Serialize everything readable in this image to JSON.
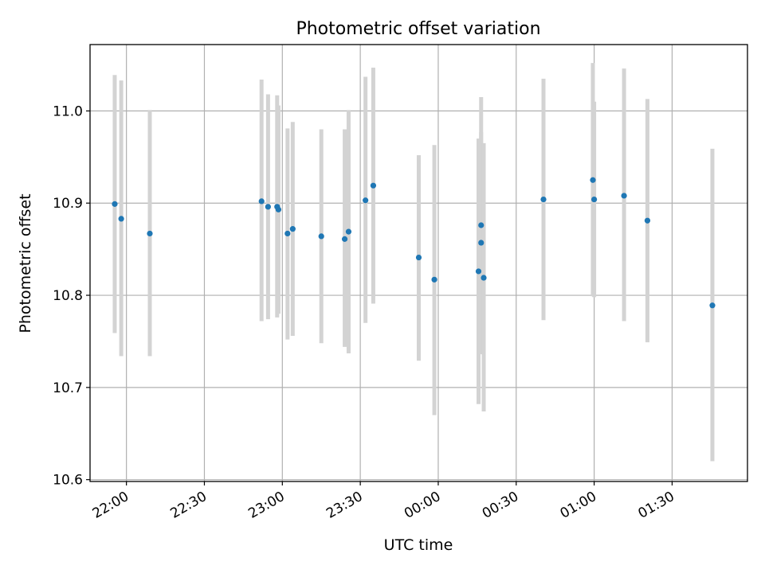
{
  "chart_data": {
    "type": "scatter",
    "title": "Photometric offset variation",
    "xlabel": "UTC time",
    "ylabel": "Photometric offset",
    "xlim": [
      "2023-01-01T21:46:00",
      "2023-01-02T01:59:00"
    ],
    "ylim": [
      10.598,
      11.072
    ],
    "grid": true,
    "x_ticks": [
      {
        "t": "2023-01-01T22:00:00",
        "label": "22:00"
      },
      {
        "t": "2023-01-01T22:30:00",
        "label": "22:30"
      },
      {
        "t": "2023-01-01T23:00:00",
        "label": "23:00"
      },
      {
        "t": "2023-01-01T23:30:00",
        "label": "23:30"
      },
      {
        "t": "2023-01-02T00:00:00",
        "label": "00:00"
      },
      {
        "t": "2023-01-02T00:30:00",
        "label": "00:30"
      },
      {
        "t": "2023-01-02T01:00:00",
        "label": "01:00"
      },
      {
        "t": "2023-01-02T01:30:00",
        "label": "01:30"
      }
    ],
    "y_ticks": [
      10.6,
      10.7,
      10.8,
      10.9,
      11.0
    ],
    "y_tick_labels": [
      "10.6",
      "10.7",
      "10.8",
      "10.9",
      "11.0"
    ],
    "colors": {
      "points": "#1f77b4",
      "errorbars": "#d3d3d3",
      "grid": "#b0b0b0",
      "axes": "#000000"
    },
    "points": [
      {
        "t": "2023-01-01T21:55:30",
        "y": 10.899,
        "lo": 10.759,
        "hi": 11.039
      },
      {
        "t": "2023-01-01T21:58:00",
        "y": 10.883,
        "lo": 10.734,
        "hi": 11.033
      },
      {
        "t": "2023-01-01T22:09:00",
        "y": 10.867,
        "lo": 10.734,
        "hi": 11.001
      },
      {
        "t": "2023-01-01T22:52:00",
        "y": 10.902,
        "lo": 10.772,
        "hi": 11.034
      },
      {
        "t": "2023-01-01T22:54:30",
        "y": 10.896,
        "lo": 10.774,
        "hi": 11.018
      },
      {
        "t": "2023-01-01T22:58:00",
        "y": 10.896,
        "lo": 10.776,
        "hi": 11.017
      },
      {
        "t": "2023-01-01T22:58:30",
        "y": 10.893,
        "lo": 10.78,
        "hi": 11.006
      },
      {
        "t": "2023-01-01T23:02:00",
        "y": 10.867,
        "lo": 10.752,
        "hi": 10.981
      },
      {
        "t": "2023-01-01T23:04:00",
        "y": 10.872,
        "lo": 10.756,
        "hi": 10.988
      },
      {
        "t": "2023-01-01T23:15:00",
        "y": 10.864,
        "lo": 10.748,
        "hi": 10.98
      },
      {
        "t": "2023-01-01T23:24:00",
        "y": 10.861,
        "lo": 10.744,
        "hi": 10.98
      },
      {
        "t": "2023-01-01T23:25:30",
        "y": 10.869,
        "lo": 10.737,
        "hi": 11.001
      },
      {
        "t": "2023-01-01T23:32:00",
        "y": 10.903,
        "lo": 10.77,
        "hi": 11.037
      },
      {
        "t": "2023-01-01T23:35:00",
        "y": 10.919,
        "lo": 10.791,
        "hi": 11.047
      },
      {
        "t": "2023-01-01T23:52:30",
        "y": 10.841,
        "lo": 10.729,
        "hi": 10.952
      },
      {
        "t": "2023-01-01T23:58:30",
        "y": 10.817,
        "lo": 10.67,
        "hi": 10.963
      },
      {
        "t": "2023-01-02T00:15:30",
        "y": 10.826,
        "lo": 10.682,
        "hi": 10.97
      },
      {
        "t": "2023-01-02T00:16:30",
        "y": 10.857,
        "lo": 10.737,
        "hi": 10.977
      },
      {
        "t": "2023-01-02T00:16:30",
        "y": 10.876,
        "lo": 10.736,
        "hi": 11.015
      },
      {
        "t": "2023-01-02T00:17:30",
        "y": 10.819,
        "lo": 10.674,
        "hi": 10.965
      },
      {
        "t": "2023-01-02T00:40:30",
        "y": 10.904,
        "lo": 10.773,
        "hi": 11.035
      },
      {
        "t": "2023-01-02T00:59:30",
        "y": 10.925,
        "lo": 10.799,
        "hi": 11.052
      },
      {
        "t": "2023-01-02T01:00:00",
        "y": 10.904,
        "lo": 10.798,
        "hi": 11.01
      },
      {
        "t": "2023-01-02T01:11:30",
        "y": 10.908,
        "lo": 10.772,
        "hi": 11.046
      },
      {
        "t": "2023-01-02T01:20:30",
        "y": 10.881,
        "lo": 10.749,
        "hi": 11.013
      },
      {
        "t": "2023-01-02T01:45:30",
        "y": 10.789,
        "lo": 10.62,
        "hi": 10.959
      }
    ]
  }
}
